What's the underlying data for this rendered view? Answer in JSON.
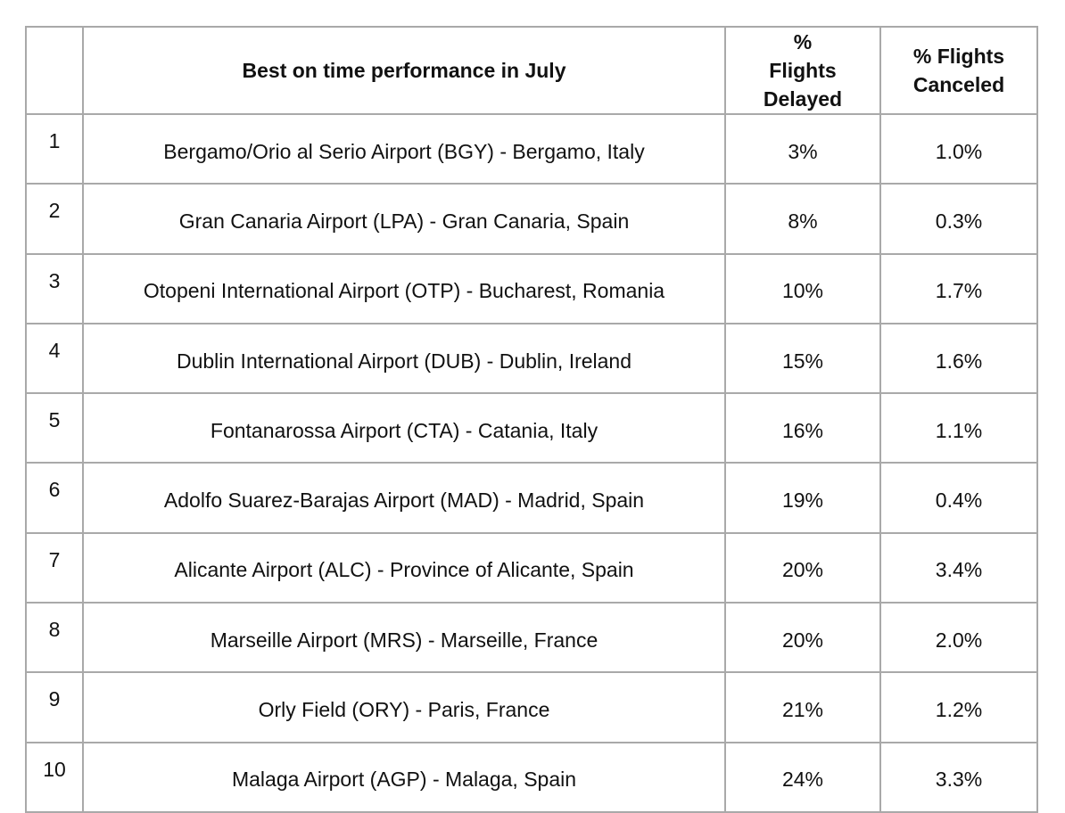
{
  "table": {
    "header": [
      "Best on time performance in July",
      "% Flights Delayed",
      "% Flights Canceled"
    ],
    "rows": [
      [
        "1",
        "Bergamo/Orio al Serio Airport (BGY) - Bergamo, Italy",
        "3%",
        "1.0%"
      ],
      [
        "2",
        "Gran Canaria Airport (LPA) - Gran Canaria, Spain",
        "8%",
        "0.3%"
      ],
      [
        "3",
        "Otopeni International Airport (OTP) - Bucharest, Romania",
        "10%",
        "1.7%"
      ],
      [
        "4",
        "Dublin International Airport (DUB) - Dublin, Ireland",
        "15%",
        "1.6%"
      ],
      [
        "5",
        "Fontanarossa Airport (CTA) - Catania, Italy",
        "16%",
        "1.1%"
      ],
      [
        "6",
        "Adolfo Suarez-Barajas Airport (MAD) - Madrid, Spain",
        "19%",
        "0.4%"
      ],
      [
        "7",
        "Alicante Airport (ALC) - Province of Alicante, Spain",
        "20%",
        "3.4%"
      ],
      [
        "8",
        "Marseille Airport (MRS) - Marseille, France",
        "20%",
        "2.0%"
      ],
      [
        "9",
        "Orly Field (ORY) - Paris, France",
        "21%",
        "1.2%"
      ],
      [
        "10",
        "Malaga Airport (AGP) - Malaga, Spain",
        "24%",
        "3.3%"
      ]
    ]
  }
}
